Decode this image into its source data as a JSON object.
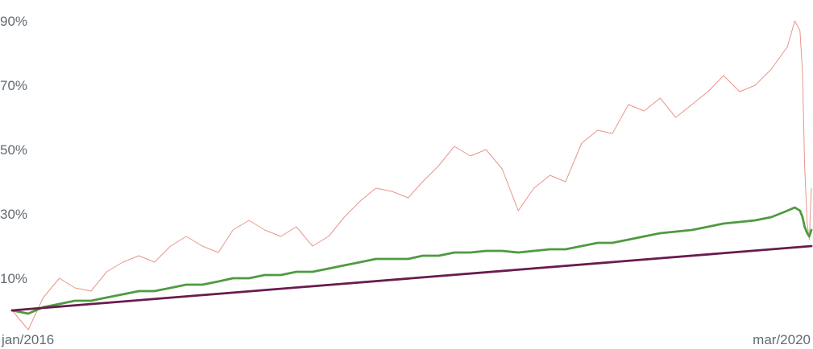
{
  "chart_data": {
    "type": "line",
    "title": "",
    "xlabel": "",
    "ylabel": "",
    "x_range": [
      "2016-01",
      "2020-03"
    ],
    "x_tick_labels": [
      "jan/2016",
      "mar/2020"
    ],
    "ylim": [
      -3,
      92
    ],
    "y_ticks": [
      10,
      30,
      50,
      70,
      90
    ],
    "y_tick_labels": [
      "10%",
      "30%",
      "50%",
      "70%",
      "90%"
    ],
    "grid": false,
    "legend": "none",
    "series": [
      {
        "color": "#e8958c",
        "stroke_style": "thin",
        "points": [
          [
            "2016-01",
            0
          ],
          [
            "2016-02",
            -6
          ],
          [
            "2016-03",
            4
          ],
          [
            "2016-04",
            10
          ],
          [
            "2016-05",
            7
          ],
          [
            "2016-06",
            6
          ],
          [
            "2016-07",
            12
          ],
          [
            "2016-08",
            15
          ],
          [
            "2016-09",
            17
          ],
          [
            "2016-10",
            15
          ],
          [
            "2016-11",
            20
          ],
          [
            "2016-12",
            23
          ],
          [
            "2017-01",
            20
          ],
          [
            "2017-02",
            18
          ],
          [
            "2017-03",
            25
          ],
          [
            "2017-04",
            28
          ],
          [
            "2017-05",
            25
          ],
          [
            "2017-06",
            23
          ],
          [
            "2017-07",
            26
          ],
          [
            "2017-08",
            20
          ],
          [
            "2017-09",
            23
          ],
          [
            "2017-10",
            29
          ],
          [
            "2017-11",
            34
          ],
          [
            "2017-12",
            38
          ],
          [
            "2018-01",
            37
          ],
          [
            "2018-02",
            35
          ],
          [
            "2018-03",
            40
          ],
          [
            "2018-04",
            45
          ],
          [
            "2018-05",
            51
          ],
          [
            "2018-06",
            48
          ],
          [
            "2018-07",
            50
          ],
          [
            "2018-08",
            44
          ],
          [
            "2018-09",
            31
          ],
          [
            "2018-10",
            38
          ],
          [
            "2018-11",
            42
          ],
          [
            "2018-12",
            40
          ],
          [
            "2019-01",
            52
          ],
          [
            "2019-02",
            56
          ],
          [
            "2019-03",
            55
          ],
          [
            "2019-04",
            64
          ],
          [
            "2019-05",
            62
          ],
          [
            "2019-06",
            66
          ],
          [
            "2019-07",
            60
          ],
          [
            "2019-08",
            64
          ],
          [
            "2019-09",
            68
          ],
          [
            "2019-10",
            73
          ],
          [
            "2019-11",
            68
          ],
          [
            "2019-12",
            70
          ],
          [
            "2020-01",
            75
          ],
          [
            "2020-02",
            82
          ],
          [
            "2020-02-15",
            90
          ],
          [
            "2020-02-25",
            87
          ],
          [
            "2020-03-01",
            74
          ],
          [
            "2020-03-05",
            45
          ],
          [
            "2020-03-10",
            27
          ],
          [
            "2020-03-14",
            22
          ],
          [
            "2020-03-18",
            38
          ]
        ]
      },
      {
        "color": "#4f9a40",
        "stroke_style": "thick",
        "points": [
          [
            "2016-01",
            0
          ],
          [
            "2016-02",
            -1
          ],
          [
            "2016-03",
            1
          ],
          [
            "2016-04",
            2
          ],
          [
            "2016-05",
            3
          ],
          [
            "2016-06",
            3
          ],
          [
            "2016-07",
            4
          ],
          [
            "2016-08",
            5
          ],
          [
            "2016-09",
            6
          ],
          [
            "2016-10",
            6
          ],
          [
            "2016-11",
            7
          ],
          [
            "2016-12",
            8
          ],
          [
            "2017-01",
            8
          ],
          [
            "2017-02",
            9
          ],
          [
            "2017-03",
            10
          ],
          [
            "2017-04",
            10
          ],
          [
            "2017-05",
            11
          ],
          [
            "2017-06",
            11
          ],
          [
            "2017-07",
            12
          ],
          [
            "2017-08",
            12
          ],
          [
            "2017-09",
            13
          ],
          [
            "2017-10",
            14
          ],
          [
            "2017-11",
            15
          ],
          [
            "2017-12",
            16
          ],
          [
            "2018-01",
            16
          ],
          [
            "2018-02",
            16
          ],
          [
            "2018-03",
            17
          ],
          [
            "2018-04",
            17
          ],
          [
            "2018-05",
            18
          ],
          [
            "2018-06",
            18
          ],
          [
            "2018-07",
            18.5
          ],
          [
            "2018-08",
            18.5
          ],
          [
            "2018-09",
            18
          ],
          [
            "2018-10",
            18.5
          ],
          [
            "2018-11",
            19
          ],
          [
            "2018-12",
            19
          ],
          [
            "2019-01",
            20
          ],
          [
            "2019-02",
            21
          ],
          [
            "2019-03",
            21
          ],
          [
            "2019-04",
            22
          ],
          [
            "2019-05",
            23
          ],
          [
            "2019-06",
            24
          ],
          [
            "2019-07",
            24.5
          ],
          [
            "2019-08",
            25
          ],
          [
            "2019-09",
            26
          ],
          [
            "2019-10",
            27
          ],
          [
            "2019-11",
            27.5
          ],
          [
            "2019-12",
            28
          ],
          [
            "2020-01",
            29
          ],
          [
            "2020-02",
            31
          ],
          [
            "2020-02-15",
            32
          ],
          [
            "2020-02-25",
            31
          ],
          [
            "2020-03-01",
            29
          ],
          [
            "2020-03-05",
            26
          ],
          [
            "2020-03-10",
            24
          ],
          [
            "2020-03-14",
            23
          ],
          [
            "2020-03-18",
            25
          ]
        ]
      },
      {
        "color": "#6a1b4d",
        "stroke_style": "thick",
        "points": [
          [
            "2016-01",
            0
          ],
          [
            "2020-03-18",
            20
          ]
        ]
      }
    ]
  }
}
